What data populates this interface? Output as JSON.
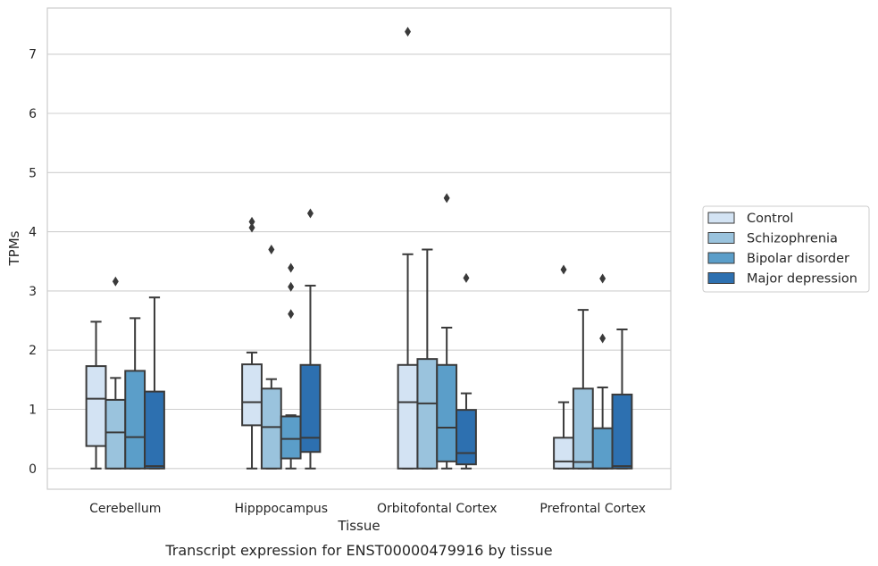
{
  "chart_data": {
    "type": "box",
    "title": "",
    "caption": "Transcript expression for ENST00000479916 by tissue",
    "xlabel": "Tissue",
    "ylabel": "TPMs",
    "ylim": [
      -0.35,
      7.78
    ],
    "yticks": [
      0,
      1,
      2,
      3,
      4,
      5,
      6,
      7
    ],
    "grid": "horizontal",
    "legend_position": "right",
    "categories": [
      "Cerebellum",
      "Hipppocampus",
      "Orbitofontal Cortex",
      "Prefrontal Cortex"
    ],
    "series": [
      {
        "name": "Control",
        "color": "#d3e3f3",
        "boxes": [
          {
            "min": 0,
            "q1": 0.38,
            "median": 1.18,
            "q3": 1.73,
            "max": 2.48,
            "outliers": []
          },
          {
            "min": 0,
            "q1": 0.73,
            "median": 1.12,
            "q3": 1.76,
            "max": 1.96,
            "outliers": [
              4.07,
              4.17
            ]
          },
          {
            "min": 0,
            "q1": 0,
            "median": 1.12,
            "q3": 1.75,
            "max": 3.62,
            "outliers": [
              7.38
            ]
          },
          {
            "min": 0,
            "q1": 0,
            "median": 0.12,
            "q3": 0.52,
            "max": 1.12,
            "outliers": [
              3.36
            ]
          }
        ]
      },
      {
        "name": "Schizophrenia",
        "color": "#9ac3dd",
        "boxes": [
          {
            "min": 0,
            "q1": 0,
            "median": 0.61,
            "q3": 1.16,
            "max": 1.53,
            "outliers": [
              3.16
            ]
          },
          {
            "min": 0,
            "q1": 0,
            "median": 0.7,
            "q3": 1.35,
            "max": 1.51,
            "outliers": [
              3.7
            ]
          },
          {
            "min": 0,
            "q1": 0,
            "median": 1.1,
            "q3": 1.85,
            "max": 3.7,
            "outliers": []
          },
          {
            "min": 0,
            "q1": 0,
            "median": 0.11,
            "q3": 1.35,
            "max": 2.68,
            "outliers": []
          }
        ]
      },
      {
        "name": "Bipolar disorder",
        "color": "#5b9ec9",
        "boxes": [
          {
            "min": 0,
            "q1": 0,
            "median": 0.53,
            "q3": 1.65,
            "max": 2.54,
            "outliers": []
          },
          {
            "min": 0,
            "q1": 0.17,
            "median": 0.5,
            "q3": 0.88,
            "max": 0.9,
            "outliers": [
              2.61,
              3.07,
              3.39
            ]
          },
          {
            "min": 0,
            "q1": 0.12,
            "median": 0.69,
            "q3": 1.75,
            "max": 2.38,
            "outliers": [
              4.57
            ]
          },
          {
            "min": 0,
            "q1": 0,
            "median": 0,
            "q3": 0.68,
            "max": 1.37,
            "outliers": [
              2.2,
              3.21
            ]
          }
        ]
      },
      {
        "name": "Major depression",
        "color": "#2d70b0",
        "boxes": [
          {
            "min": 0,
            "q1": 0,
            "median": 0.04,
            "q3": 1.3,
            "max": 2.89,
            "outliers": []
          },
          {
            "min": 0,
            "q1": 0.28,
            "median": 0.52,
            "q3": 1.75,
            "max": 3.09,
            "outliers": [
              4.31
            ]
          },
          {
            "min": 0,
            "q1": 0.07,
            "median": 0.26,
            "q3": 0.99,
            "max": 1.27,
            "outliers": [
              3.22
            ]
          },
          {
            "min": 0,
            "q1": 0,
            "median": 0.04,
            "q3": 1.25,
            "max": 2.35,
            "outliers": []
          }
        ]
      }
    ]
  },
  "colors": {
    "grid": "#cfcfcf",
    "spine": "#cccccc",
    "box_edge": "#3a3a3a"
  }
}
